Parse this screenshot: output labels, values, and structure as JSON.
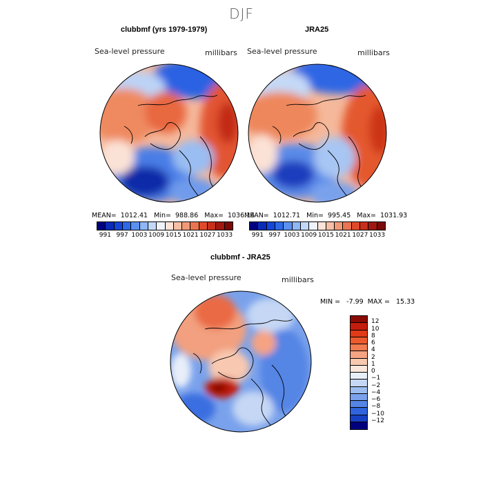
{
  "figure": {
    "title": "DJF",
    "variable": "Sea-level pressure",
    "units": "millibars"
  },
  "panels": [
    {
      "title": "clubbmf (yrs 1979-1979)",
      "stats": "MEAN=  1012.41   Min=  988.86   Max=  1036.14"
    },
    {
      "title": "JRA25",
      "stats": "MEAN=  1012.71   Min=  995.45   Max=  1031.93"
    },
    {
      "title": "clubbmf - JRA25",
      "stats": "MIN =   -7.99  MAX =   15.33"
    }
  ],
  "colorbar_abs": {
    "colors": [
      "#00007f",
      "#0a2ab8",
      "#1546d9",
      "#2e6ae8",
      "#5b90f0",
      "#8fb6f5",
      "#c2d8f8",
      "#eef3fa",
      "#fbe3d8",
      "#f6bfa5",
      "#f09a78",
      "#ea7450",
      "#e04a2a",
      "#c7301a",
      "#a01810",
      "#7a0a08"
    ],
    "ticks": [
      "991",
      "997",
      "1003",
      "1009",
      "1015",
      "1021",
      "1027",
      "1033"
    ]
  },
  "colorbar_diff": {
    "colors": [
      "#8a0b05",
      "#c21d0d",
      "#e03a18",
      "#ec5a2e",
      "#f07c50",
      "#f5a383",
      "#f8c8b0",
      "#fbe6dc",
      "#e9eff9",
      "#c5d7f4",
      "#9dbdf0",
      "#7aa1eb",
      "#5585e5",
      "#2f64dd",
      "#1741c4",
      "#03007d"
    ],
    "ticks": [
      "12",
      "10",
      "8",
      "6",
      "4",
      "2",
      "1",
      "0",
      "−1",
      "−2",
      "−4",
      "−6",
      "−8",
      "−10",
      "−12"
    ]
  }
}
